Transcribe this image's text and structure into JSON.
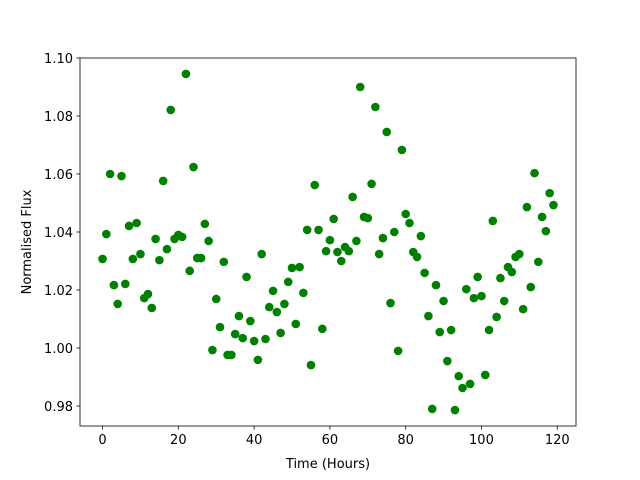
{
  "chart_data": {
    "type": "scatter",
    "xlabel": "Time (Hours)",
    "ylabel": "Normalised Flux",
    "color": "#008000",
    "x": [
      0,
      1,
      2,
      3,
      4,
      5,
      6,
      7,
      8,
      9,
      10,
      11,
      12,
      13,
      14,
      15,
      16,
      17,
      18,
      19,
      20,
      21,
      22,
      23,
      24,
      25,
      26,
      27,
      28,
      29,
      30,
      31,
      32,
      33,
      34,
      35,
      36,
      37,
      38,
      39,
      40,
      41,
      42,
      43,
      44,
      45,
      46,
      47,
      48,
      49,
      50,
      51,
      52,
      53,
      54,
      55,
      56,
      57,
      58,
      59,
      60,
      61,
      62,
      63,
      64,
      65,
      66,
      67,
      68,
      69,
      70,
      71,
      72,
      73,
      74,
      75,
      76,
      77,
      78,
      79,
      80,
      81,
      82,
      83,
      84,
      85,
      86,
      87,
      88,
      89,
      90,
      91,
      92,
      93,
      94,
      95,
      96,
      97,
      98,
      99,
      100,
      101,
      102,
      103,
      104,
      105,
      106,
      107,
      108,
      109,
      110,
      111,
      112,
      113,
      114,
      115,
      116,
      117,
      118,
      119
    ],
    "values": [
      1.0307,
      1.0393,
      1.06,
      1.0217,
      1.0152,
      1.0593,
      1.0221,
      1.0421,
      1.0307,
      1.0431,
      1.0324,
      1.0172,
      1.0186,
      1.0138,
      1.0376,
      1.0303,
      1.0576,
      1.0341,
      1.0821,
      1.0376,
      1.039,
      1.0383,
      1.0945,
      1.0266,
      1.0624,
      1.031,
      1.031,
      1.0428,
      1.0369,
      0.9993,
      1.0169,
      1.0072,
      1.0297,
      0.9976,
      0.9976,
      1.0048,
      1.011,
      1.0034,
      1.0245,
      1.0093,
      1.0024,
      0.9959,
      1.0324,
      1.0031,
      1.0141,
      1.0197,
      1.0124,
      1.0052,
      1.0152,
      1.0228,
      1.0276,
      1.0083,
      1.0279,
      1.019,
      1.0407,
      0.9941,
      1.0562,
      1.0407,
      1.0066,
      1.0334,
      1.0372,
      1.0445,
      1.0331,
      1.03,
      1.0348,
      1.0334,
      1.0521,
      1.0369,
      1.09,
      1.0452,
      1.0448,
      1.0566,
      1.0831,
      1.0324,
      1.0379,
      1.0745,
      1.0155,
      1.04,
      0.999,
      1.0683,
      1.0462,
      1.0431,
      1.0331,
      1.0314,
      1.0386,
      1.0259,
      1.011,
      0.979,
      1.0217,
      1.0055,
      1.0162,
      0.9955,
      1.0062,
      0.9786,
      0.9903,
      0.9862,
      1.0203,
      0.9876,
      1.0172,
      1.0245,
      1.0179,
      0.9907,
      1.0062,
      1.0438,
      1.0107,
      1.0241,
      1.0162,
      1.0279,
      1.0262,
      1.0314,
      1.0324,
      1.0134,
      1.0486,
      1.021,
      1.0603,
      1.0297,
      1.0452,
      1.0403,
      1.0534,
      1.0493
    ],
    "xlim": [
      -5.95,
      124.95
    ],
    "ylim": [
      0.9731,
      1.1
    ],
    "xticks": [
      0,
      20,
      40,
      60,
      80,
      100,
      120
    ],
    "yticks": [
      0.98,
      {
        "value": 1,
        "label": "1.00"
      },
      1.02,
      1.04,
      1.06,
      1.08,
      {
        "value": 1.1,
        "label": "1.10"
      }
    ]
  }
}
